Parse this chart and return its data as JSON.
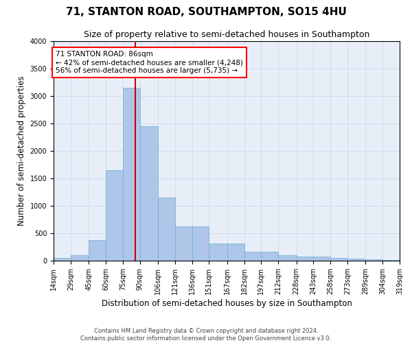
{
  "title": "71, STANTON ROAD, SOUTHAMPTON, SO15 4HU",
  "subtitle": "Size of property relative to semi-detached houses in Southampton",
  "xlabel": "Distribution of semi-detached houses by size in Southampton",
  "ylabel": "Number of semi-detached properties",
  "footer_line1": "Contains HM Land Registry data © Crown copyright and database right 2024.",
  "footer_line2": "Contains public sector information licensed under the Open Government Licence v3.0.",
  "property_size": 86,
  "annotation_title": "71 STANTON ROAD: 86sqm",
  "annotation_line1": "← 42% of semi-detached houses are smaller (4,248)",
  "annotation_line2": "56% of semi-detached houses are larger (5,735) →",
  "bin_edges": [
    14,
    29,
    45,
    60,
    75,
    90,
    106,
    121,
    136,
    151,
    167,
    182,
    197,
    212,
    228,
    243,
    258,
    273,
    289,
    304,
    319
  ],
  "bar_heights": [
    50,
    100,
    370,
    1650,
    3150,
    2450,
    1150,
    630,
    630,
    310,
    310,
    160,
    160,
    100,
    70,
    70,
    50,
    40,
    30,
    10
  ],
  "bar_color": "#aec6e8",
  "bar_edge_color": "#6aaed6",
  "vline_color": "#cc0000",
  "vline_x": 86,
  "ylim": [
    0,
    4000
  ],
  "yticks": [
    0,
    500,
    1000,
    1500,
    2000,
    2500,
    3000,
    3500,
    4000
  ],
  "grid_color": "#d0d8e8",
  "background_color": "#e8eef8",
  "title_fontsize": 11,
  "subtitle_fontsize": 9,
  "axis_label_fontsize": 8.5,
  "tick_fontsize": 7,
  "annotation_fontsize": 7.5,
  "footer_fontsize": 6
}
